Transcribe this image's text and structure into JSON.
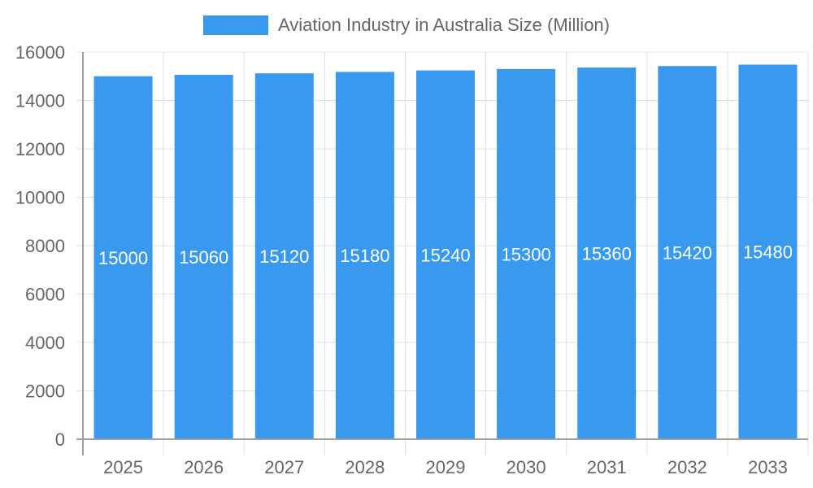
{
  "chart_data": {
    "type": "bar",
    "title": "",
    "legend": [
      {
        "label": "Aviation Industry in Australia Size (Million)",
        "color": "#3899ef"
      }
    ],
    "legend_position": "top",
    "categories": [
      "2025",
      "2026",
      "2027",
      "2028",
      "2029",
      "2030",
      "2031",
      "2032",
      "2033"
    ],
    "series": [
      {
        "name": "Aviation Industry in Australia Size (Million)",
        "values": [
          15000,
          15060,
          15120,
          15180,
          15240,
          15300,
          15360,
          15420,
          15480
        ]
      }
    ],
    "xlabel": "",
    "ylabel": "",
    "ylim": [
      0,
      16000
    ],
    "yticks": [
      0,
      2000,
      4000,
      6000,
      8000,
      10000,
      12000,
      14000,
      16000
    ],
    "grid": true,
    "data_labels": true
  },
  "legend": {
    "label": "Aviation Industry in Australia Size (Million)",
    "color": "#3899ef"
  }
}
